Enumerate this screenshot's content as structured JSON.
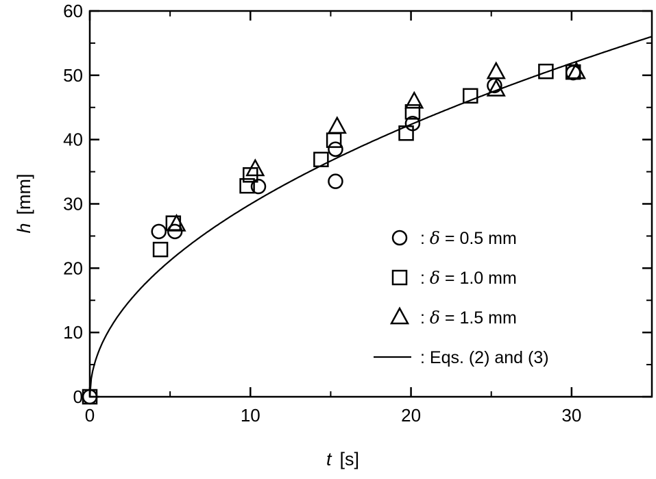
{
  "chart_data": {
    "type": "scatter",
    "xlabel": "t",
    "xlabel_unit": "[s]",
    "ylabel": "h",
    "ylabel_unit": "[mm]",
    "xlim": [
      0,
      35
    ],
    "ylim": [
      0,
      60
    ],
    "xticks": [
      0,
      10,
      20,
      30
    ],
    "yticks": [
      0,
      10,
      20,
      30,
      40,
      50,
      60
    ],
    "legend_position": "bottom-right",
    "series": [
      {
        "name": "0.5 mm",
        "legend_label": ": δ = 0.5 mm",
        "marker": "circle",
        "points": [
          [
            0,
            0
          ],
          [
            4.3,
            25.7
          ],
          [
            5.3,
            25.7
          ],
          [
            10.5,
            32.7
          ],
          [
            15.3,
            33.5
          ],
          [
            15.3,
            38.5
          ],
          [
            20.1,
            42.5
          ],
          [
            25.2,
            48.4
          ],
          [
            30.1,
            50.4
          ]
        ]
      },
      {
        "name": "1.0 mm",
        "legend_label": ": δ = 1.0 mm",
        "marker": "square",
        "points": [
          [
            0,
            0
          ],
          [
            4.4,
            22.9
          ],
          [
            5.2,
            27.0
          ],
          [
            9.8,
            32.8
          ],
          [
            10.0,
            34.5
          ],
          [
            14.4,
            36.9
          ],
          [
            15.2,
            39.9
          ],
          [
            19.7,
            41.0
          ],
          [
            20.1,
            44.3
          ],
          [
            23.7,
            46.8
          ],
          [
            28.4,
            50.6
          ],
          [
            30.1,
            50.5
          ]
        ]
      },
      {
        "name": "1.5 mm",
        "legend_label": ": δ = 1.5 mm",
        "marker": "triangle",
        "points": [
          [
            5.4,
            26.8
          ],
          [
            10.3,
            35.4
          ],
          [
            15.4,
            42.0
          ],
          [
            20.2,
            45.9
          ],
          [
            25.3,
            50.5
          ],
          [
            25.3,
            47.8
          ],
          [
            30.3,
            50.5
          ]
        ]
      },
      {
        "name": "Eqs. (2) and (3)",
        "legend_label": ": Eqs. (2) and (3)",
        "marker": "line",
        "coef": 9.47,
        "exponent": 0.5
      }
    ]
  }
}
